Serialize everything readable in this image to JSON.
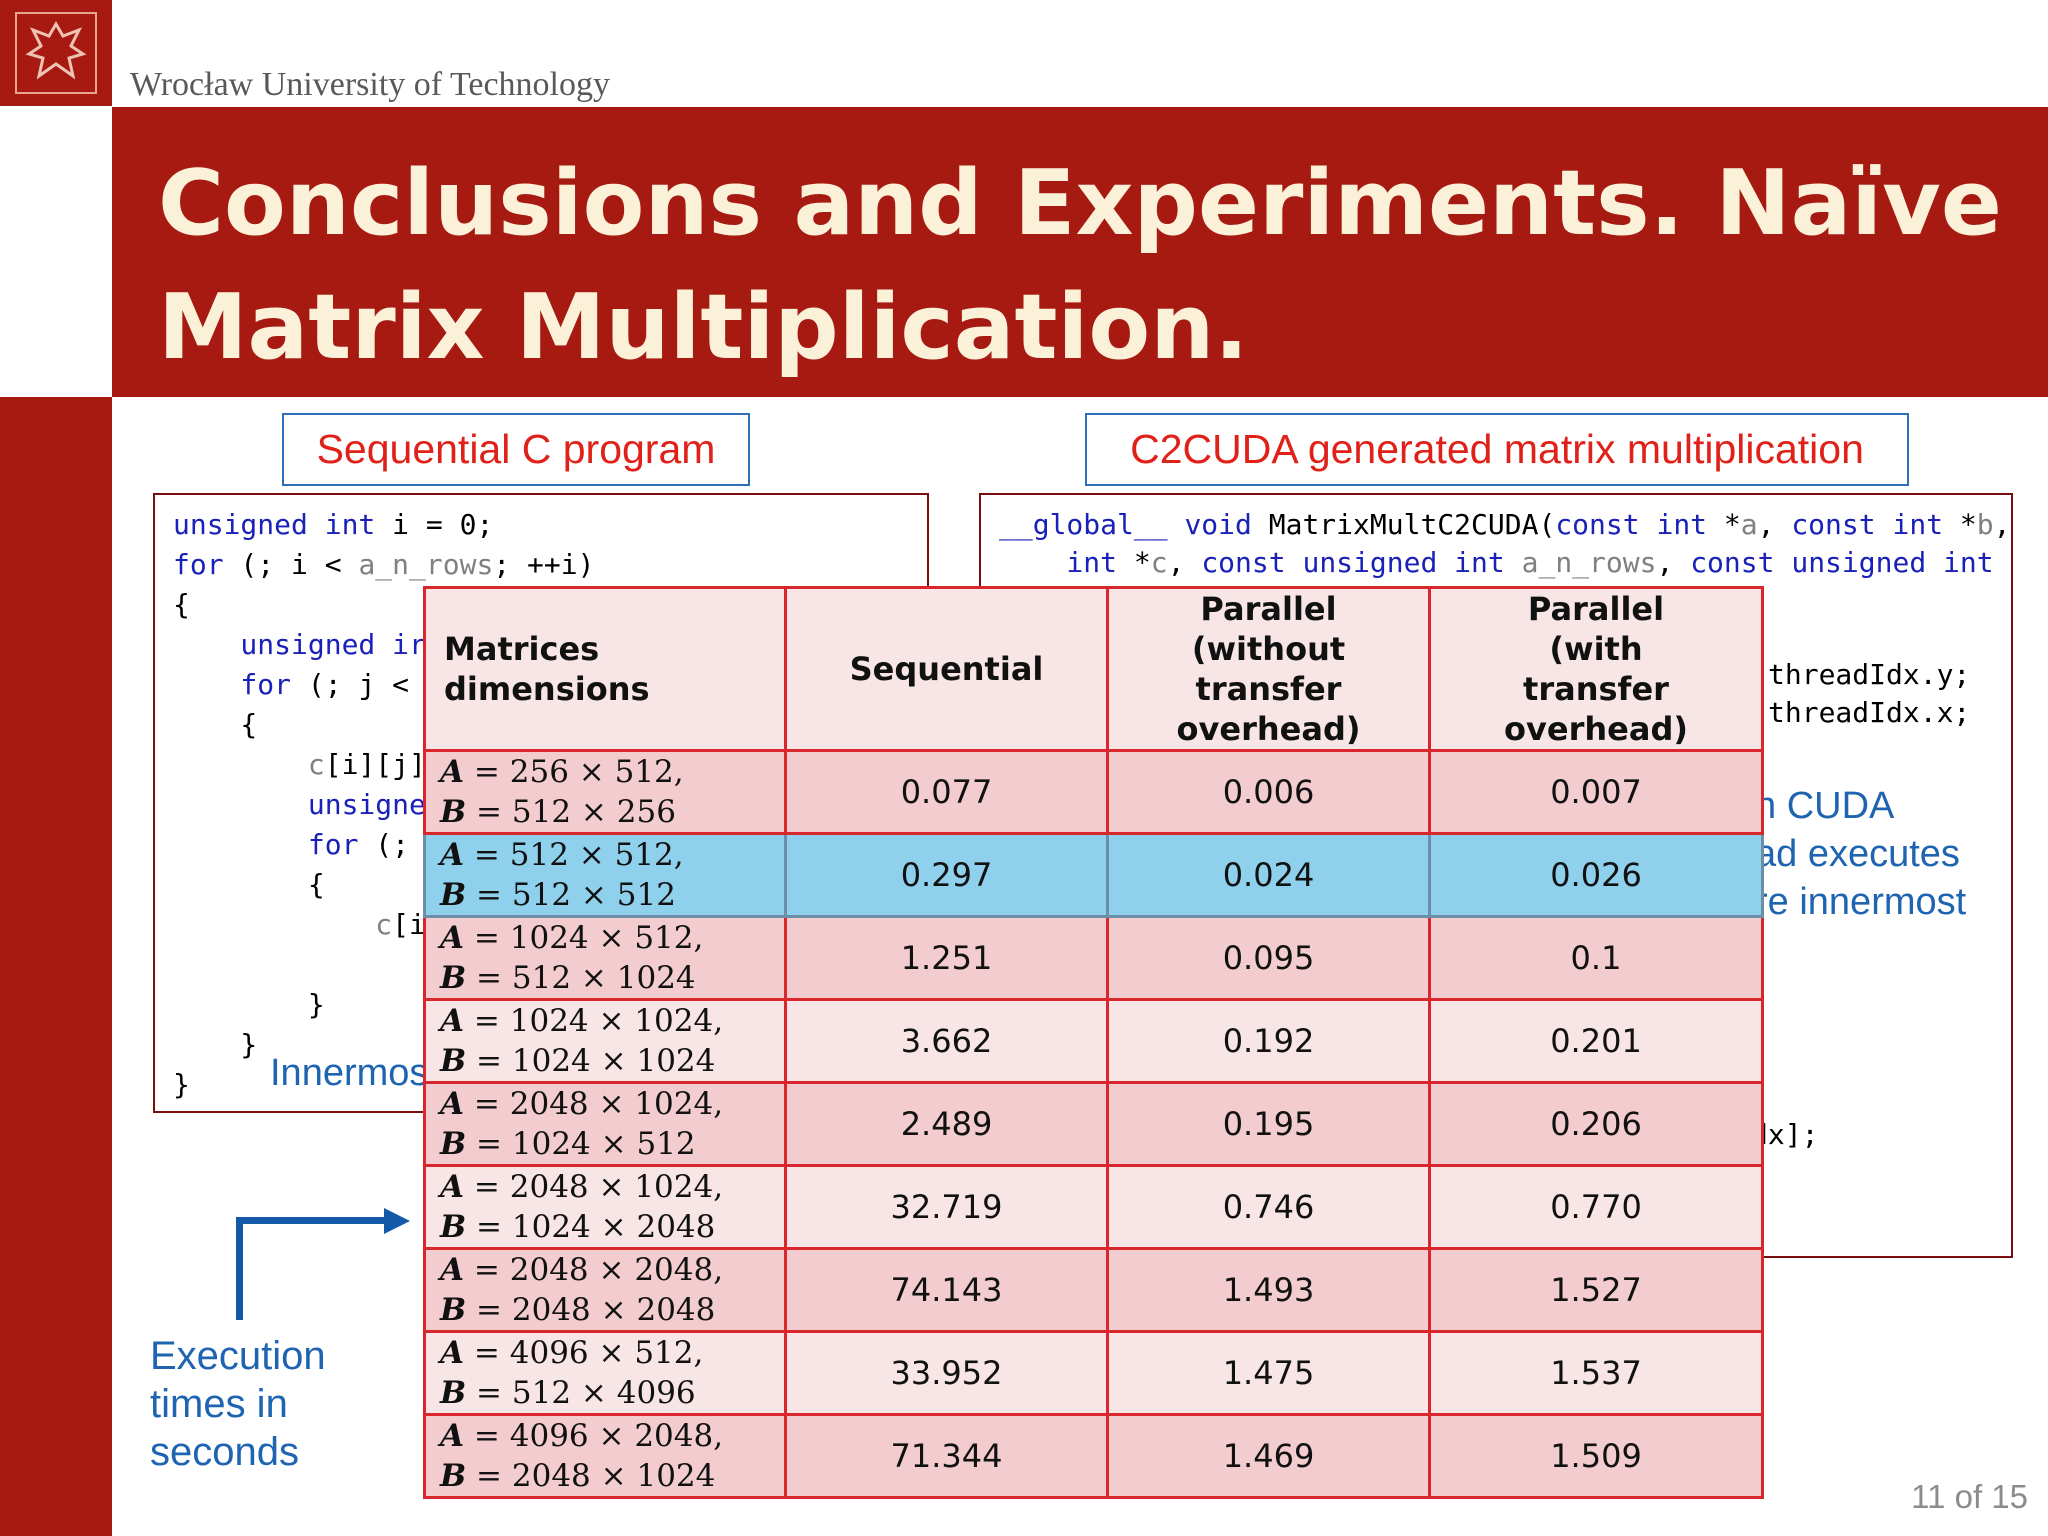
{
  "header": {
    "university": "Wrocław University of Technology",
    "title_line1": "Conclusions and Experiments. Naïve",
    "title_line2": "Matrix Multiplication."
  },
  "labels": {
    "sequential": "Sequential C program",
    "cuda": "C2CUDA generated matrix multiplication"
  },
  "code_seq": [
    [
      [
        "kw",
        "unsigned int"
      ],
      [
        "blk",
        " i = 0;"
      ]
    ],
    [
      [
        "kw",
        "for"
      ],
      [
        "blk",
        " (; i < "
      ],
      [
        "ident",
        "a_n_rows"
      ],
      [
        "blk",
        "; ++i)"
      ]
    ],
    [
      [
        "blk",
        "{"
      ]
    ],
    [
      [
        "kw",
        "    unsigned ir"
      ]
    ],
    [
      [
        "kw",
        "    for"
      ],
      [
        "blk",
        " (; j <"
      ]
    ],
    [
      [
        "blk",
        "    {"
      ]
    ],
    [
      [
        "ident",
        "        c"
      ],
      [
        "blk",
        "[i][j]"
      ]
    ],
    [
      [
        "kw",
        "        unsigne"
      ]
    ],
    [
      [
        "kw",
        "        for"
      ],
      [
        "blk",
        " (;"
      ]
    ],
    [
      [
        "blk",
        "        {"
      ]
    ],
    [
      [
        "ident",
        "            c"
      ],
      [
        "blk",
        "[i"
      ]
    ],
    [
      [
        "blk",
        ""
      ]
    ],
    [
      [
        "blk",
        "        }"
      ]
    ],
    [
      [
        "blk",
        "    }"
      ]
    ],
    [
      [
        "blk",
        "}"
      ]
    ]
  ],
  "code_cuda": [
    [
      [
        "kw",
        "__global__"
      ],
      [
        "blk",
        " "
      ],
      [
        "kw",
        "void"
      ],
      [
        "blk",
        " MatrixMultC2CUDA("
      ],
      [
        "kw",
        "const int"
      ],
      [
        "blk",
        " *"
      ],
      [
        "ident",
        "a"
      ],
      [
        "blk",
        ", "
      ],
      [
        "kw",
        "const int"
      ],
      [
        "blk",
        " *"
      ],
      [
        "ident",
        "b"
      ],
      [
        "blk",
        ","
      ]
    ],
    [
      [
        "kw",
        "    int"
      ],
      [
        "blk",
        " *"
      ],
      [
        "ident",
        "c"
      ],
      [
        "blk",
        ", "
      ],
      [
        "kw",
        "const unsigned int"
      ],
      [
        "blk",
        " "
      ],
      [
        "ident",
        "a_n_rows"
      ],
      [
        "blk",
        ", "
      ],
      [
        "kw",
        "const unsigned int"
      ]
    ],
    [
      [
        "blk",
        "threadIdx.y;"
      ]
    ],
    [
      [
        "blk",
        "threadIdx.x;"
      ]
    ],
    [
      [
        "blk",
        "dx];"
      ]
    ]
  ],
  "notes": {
    "innermost": "Innermos",
    "cuda_note": [
      "h CUDA",
      "ad executes",
      "re innermost"
    ],
    "execution_times": [
      "Execution",
      "times in",
      "seconds"
    ]
  },
  "table": {
    "headers": [
      "Matrices dimensions",
      "Sequential",
      "Parallel (without transfer overhead)",
      "Parallel (with transfer overhead)"
    ],
    "rows": [
      {
        "a_dim": "256 × 512,",
        "b_dim": "512 × 256",
        "sequential": "0.077",
        "parallel_no_transfer": "0.006",
        "parallel_transfer": "0.007"
      },
      {
        "a_dim": "512 × 512,",
        "b_dim": "512 × 512",
        "sequential": "0.297",
        "parallel_no_transfer": "0.024",
        "parallel_transfer": "0.026",
        "highlight": true
      },
      {
        "a_dim": "1024 × 512,",
        "b_dim": "512 × 1024",
        "sequential": "1.251",
        "parallel_no_transfer": "0.095",
        "parallel_transfer": "0.1"
      },
      {
        "a_dim": "1024 × 1024,",
        "b_dim": "1024 × 1024",
        "sequential": "3.662",
        "parallel_no_transfer": "0.192",
        "parallel_transfer": "0.201"
      },
      {
        "a_dim": "2048 × 1024,",
        "b_dim": "1024 × 512",
        "sequential": "2.489",
        "parallel_no_transfer": "0.195",
        "parallel_transfer": "0.206"
      },
      {
        "a_dim": "2048 × 1024,",
        "b_dim": "1024 × 2048",
        "sequential": "32.719",
        "parallel_no_transfer": "0.746",
        "parallel_transfer": "0.770"
      },
      {
        "a_dim": "2048 × 2048,",
        "b_dim": "2048 × 2048",
        "sequential": "74.143",
        "parallel_no_transfer": "1.493",
        "parallel_transfer": "1.527"
      },
      {
        "a_dim": "4096 × 512,",
        "b_dim": "512 × 4096",
        "sequential": "33.952",
        "parallel_no_transfer": "1.475",
        "parallel_transfer": "1.537"
      },
      {
        "a_dim": "4096 × 2048,",
        "b_dim": "2048 × 1024",
        "sequential": "71.344",
        "parallel_no_transfer": "1.469",
        "parallel_transfer": "1.509"
      }
    ],
    "var_a": "A",
    "var_b": "B",
    "eq": " = "
  },
  "footer": {
    "page": "11 of 15"
  }
}
